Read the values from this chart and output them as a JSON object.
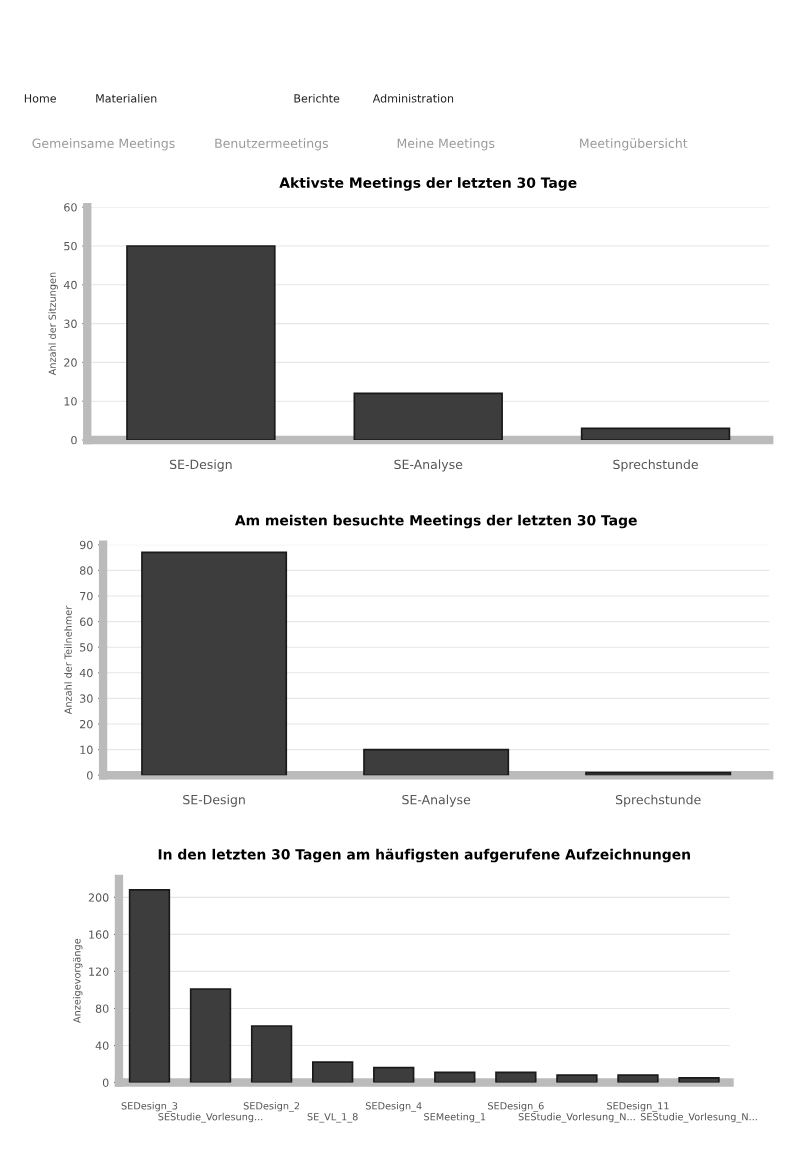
{
  "chart_data": [
    {
      "type": "bar",
      "title": "Aktivste Meetings der letzten 30 Tage",
      "ylabel": "Anzahl der Sitzungen",
      "annotations": [
        "Home",
        "Materialien",
        "Berichte",
        "Administration",
        "Gemeinsame Meetings",
        "Benutzermeetings",
        "Meine Meetings",
        "Meetingübersicht"
      ],
      "categories": [
        "SE-Design",
        "SE-Analyse",
        "Sprechstunde"
      ],
      "values": [
        50,
        12,
        3
      ],
      "color": "#3d3d3d",
      "ylim": [
        0,
        60
      ],
      "yticks": [
        0,
        10,
        20,
        30,
        40,
        50,
        60
      ],
      "grid": "y"
    },
    {
      "type": "bar",
      "title": "Am meisten besuchte Meetings der letzten 30 Tage",
      "ylabel": "Anzahl der Teilnehmer",
      "categories": [
        "SE-Design",
        "SE-Analyse",
        "Sprechstunde"
      ],
      "values": [
        87,
        10,
        1
      ],
      "color": "#3d3d3d",
      "ylim": [
        0,
        90
      ],
      "yticks": [
        0,
        10,
        20,
        30,
        40,
        50,
        60,
        70,
        80,
        90
      ],
      "grid": "y"
    },
    {
      "type": "bar",
      "title": "In den letzten 30 Tagen am häufigsten aufgerufene Aufzeichnungen",
      "ylabel": "Anzeigevorgänge",
      "categories": [
        "SEDesign_3",
        "SEStudie_Vorlesung...",
        "SEDesign_2",
        "SE_VL_1_8",
        "SEDesign_4",
        "SEMeeting_1",
        "SEDesign_6",
        "SEStudie_Vorlesung_N...",
        "SEDesign_11",
        "SEStudie_Vorlesung_N..."
      ],
      "values": [
        208,
        101,
        61,
        22,
        16,
        11,
        11,
        8,
        8,
        5
      ],
      "color": "#3d3d3d",
      "ylim": [
        0,
        220
      ],
      "yticks": [
        0,
        40,
        80,
        120,
        160,
        200
      ],
      "grid": "y"
    }
  ]
}
